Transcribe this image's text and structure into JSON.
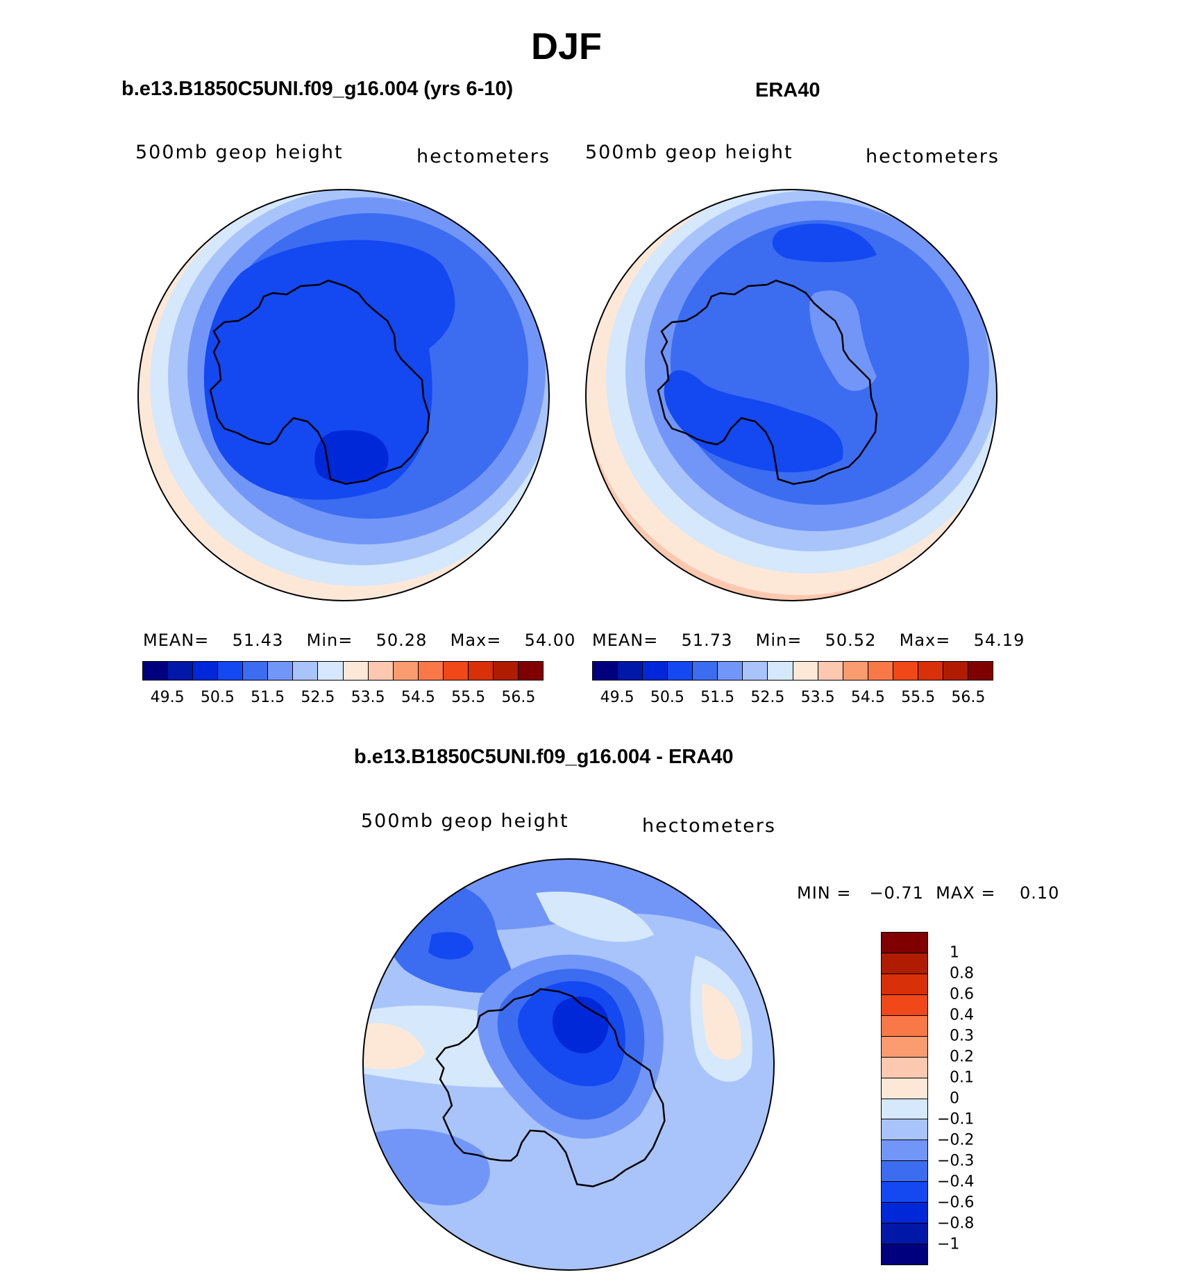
{
  "figure": {
    "title": "DJF",
    "variable_label": "500mb geop height",
    "units_label": "hectometers"
  },
  "panels": {
    "model": {
      "title": "b.e13.B1850C5UNI.f09_g16.004 (yrs 6-10)",
      "stats": {
        "mean_label": "MEAN=",
        "mean": "51.43",
        "min_label": "Min=",
        "min": "50.28",
        "max_label": "Max=",
        "max": "54.00"
      }
    },
    "obs": {
      "title": "ERA40",
      "stats": {
        "mean_label": "MEAN=",
        "mean": "51.73",
        "min_label": "Min=",
        "min": "50.52",
        "max_label": "Max=",
        "max": "54.19"
      }
    },
    "diff": {
      "title": "b.e13.B1850C5UNI.f09_g16.004 - ERA40",
      "stats_text": "MIN =   −0.71  MAX =    0.10"
    }
  },
  "colorbar_main": {
    "colors": [
      "#00007f",
      "#0018a8",
      "#0028d8",
      "#1448f0",
      "#3c6cf0",
      "#7296f8",
      "#a8c4fa",
      "#d6e8fc",
      "#fde8d8",
      "#fcc8b0",
      "#fa9c70",
      "#f87848",
      "#f04818",
      "#d83008",
      "#b01c00",
      "#800000"
    ],
    "ticks": [
      "49.5",
      "50.5",
      "51.5",
      "52.5",
      "53.5",
      "54.5",
      "55.5",
      "56.5"
    ]
  },
  "colorbar_diff": {
    "colors_top_to_bottom": [
      "#800000",
      "#b01c00",
      "#d83008",
      "#f04818",
      "#f87848",
      "#fa9c70",
      "#fcc8b0",
      "#fde8d8",
      "#d6e8fc",
      "#a8c4fa",
      "#7296f8",
      "#3c6cf0",
      "#1448f0",
      "#0028d8",
      "#0018a8",
      "#00007f"
    ],
    "ticks": [
      "1",
      "0.8",
      "0.6",
      "0.4",
      "0.3",
      "0.2",
      "0.1",
      "0",
      "−0.1",
      "−0.2",
      "−0.3",
      "−0.4",
      "−0.6",
      "−0.8",
      "−1"
    ]
  }
}
